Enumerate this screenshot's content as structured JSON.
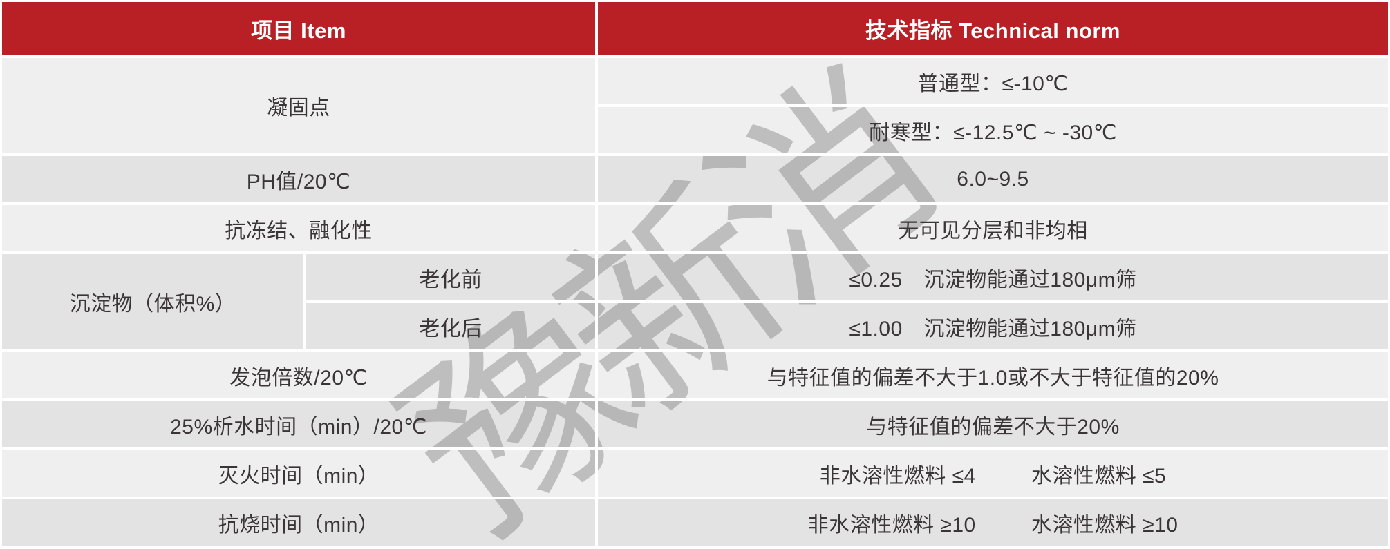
{
  "table": {
    "header": [
      "项目  Item",
      "技术指标  Technical norm"
    ],
    "rows": [
      {
        "item": "凝固点",
        "norms": [
          "普通型：≤-10℃",
          "耐寒型：≤-12.5℃ ~ -30℃"
        ]
      },
      {
        "item": "PH值/20℃",
        "norm": "6.0~9.5"
      },
      {
        "item": "抗冻结、融化性",
        "norm": "无可见分层和非均相"
      },
      {
        "item": "沉淀物（体积%）",
        "sub_items": [
          "老化前",
          "老化后"
        ],
        "norms": [
          "≤0.25　沉淀物能通过180μm筛",
          "≤1.00　沉淀物能通过180μm筛"
        ]
      },
      {
        "item": "发泡倍数/20℃",
        "norm": "与特征值的偏差不大于1.0或不大于特征值的20%"
      },
      {
        "item": "25%析水时间（min）/20℃",
        "norm": "与特征值的偏差不大于20%"
      },
      {
        "item": "灭火时间（min）",
        "norm_parts": [
          "非水溶性燃料 ≤4",
          "水溶性燃料 ≤5"
        ]
      },
      {
        "item": "抗烧时间（min）",
        "norm_parts": [
          "非水溶性燃料 ≥10",
          "水溶性燃料 ≥10"
        ]
      }
    ]
  },
  "watermark": {
    "text": "豫新消"
  },
  "colors": {
    "header_bg": "#b82025",
    "header_text": "#ffffff",
    "row_light": "#efeff0",
    "row_dark": "#e3e3e4",
    "body_text": "#3a3537",
    "grid_white": "#ffffff",
    "watermark_gray": "#bdbdbd"
  }
}
